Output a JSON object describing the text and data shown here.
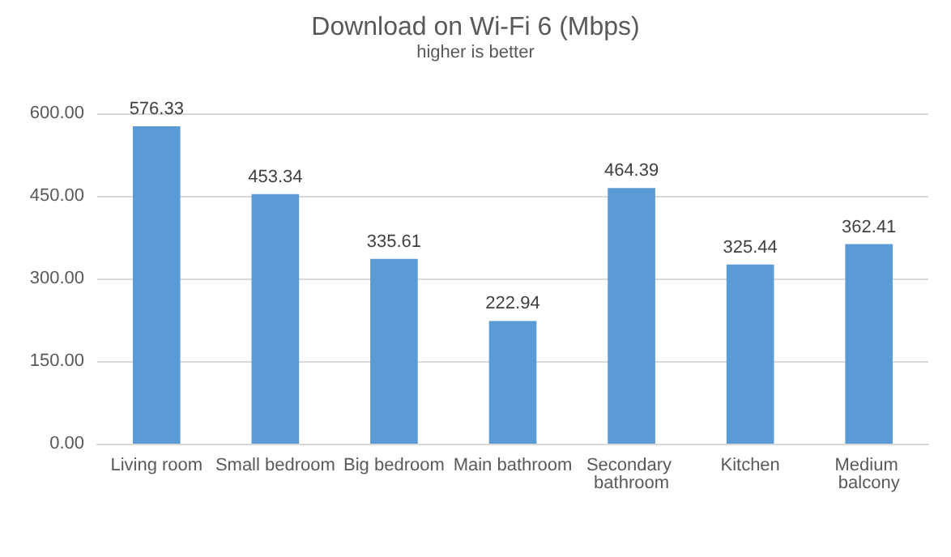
{
  "chart_data": {
    "type": "bar",
    "title": "Download on Wi-Fi 6 (Mbps)",
    "subtitle": "higher is better",
    "categories": [
      "Living room",
      "Small bedroom",
      "Big bedroom",
      "Main bathroom",
      "Secondary bathroom",
      "Kitchen",
      "Medium balcony"
    ],
    "values": [
      576.33,
      453.34,
      335.61,
      222.94,
      464.39,
      325.44,
      362.41
    ],
    "color": "#5b9bd5",
    "ylim": [
      0,
      600
    ],
    "yticks": [
      {
        "value": 0,
        "label": "0.00"
      },
      {
        "value": 150,
        "label": "150.00"
      },
      {
        "value": 300,
        "label": "300.00"
      },
      {
        "value": 450,
        "label": "450.00"
      },
      {
        "value": 600,
        "label": "600.00"
      }
    ],
    "grid": "y",
    "data_labels": true
  }
}
